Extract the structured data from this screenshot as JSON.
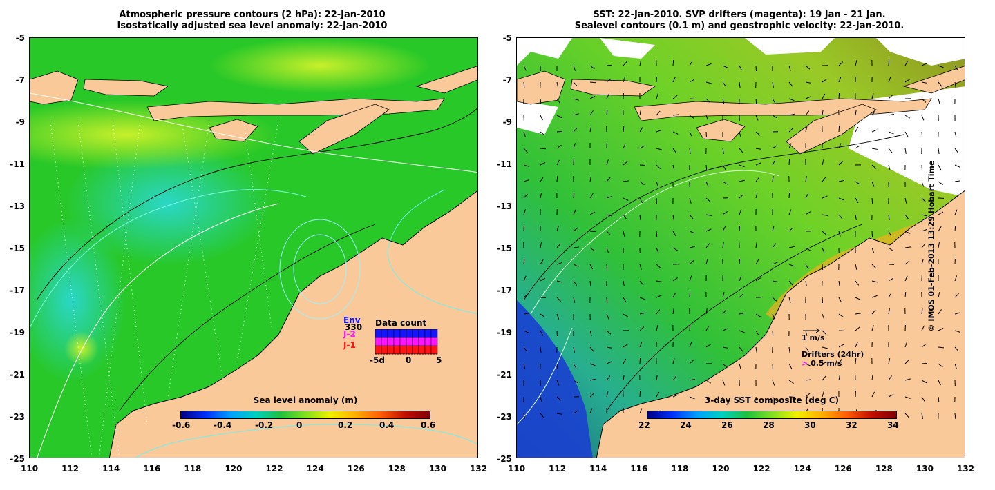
{
  "left_panel": {
    "title_line1": "Atmospheric pressure contours (2 hPa): 22-Jan-2010",
    "title_line2": "Isostatically adjusted sea level anomaly: 22-Jan-2010",
    "colorbar": {
      "label": "Sea level anomaly (m)",
      "ticks": [
        "-0.6",
        "-0.4",
        "-0.2",
        "0",
        "0.2",
        "0.4",
        "0.6"
      ]
    },
    "data_count": {
      "title": "Data count",
      "value": "330",
      "satellites": [
        "Env",
        "J-2",
        "J-1"
      ],
      "satellite_colors": [
        "#1414ff",
        "#ff14ff",
        "#ff1414"
      ],
      "axis_ticks": [
        "-5d",
        "0",
        "5"
      ]
    }
  },
  "right_panel": {
    "title_line1": "SST: 22-Jan-2010. SVP drifters (magenta): 19 Jan - 21 Jan.",
    "title_line2": "Sealevel contours (0.1 m) and geostrophic velocity: 22-Jan-2010.",
    "velocity_scale": "1 m/s",
    "drifters_label": "Drifters (24hr)",
    "drifters_scale": "0.5 m/s",
    "colorbar": {
      "label": "3-day SST composite (deg C)",
      "ticks": [
        "22",
        "24",
        "26",
        "28",
        "30",
        "32",
        "34"
      ]
    }
  },
  "axes": {
    "x_ticks": [
      "110",
      "112",
      "114",
      "116",
      "118",
      "120",
      "122",
      "124",
      "126",
      "128",
      "130",
      "132"
    ],
    "y_ticks": [
      "-5",
      "-7",
      "-9",
      "-11",
      "-13",
      "-15",
      "-17",
      "-19",
      "-21",
      "-23",
      "-25"
    ]
  },
  "credit": "© IMOS 01-Feb-2013 13:29 Hobart Time",
  "colors": {
    "land": "#f9c99a",
    "ocean_green": "#22cc22",
    "sst_cold": "#0a20c0",
    "sst_warm": "#e07010"
  }
}
